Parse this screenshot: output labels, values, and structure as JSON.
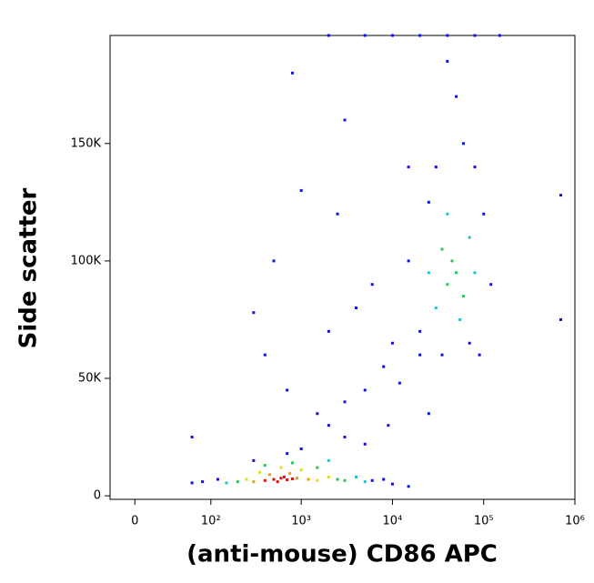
{
  "chart_data": {
    "type": "scatter",
    "x_label": "(anti-mouse) CD86 APC",
    "y_label": "Side scatter",
    "x_scale": "biexponential",
    "xlim": [
      -20,
      1000000
    ],
    "ylim": [
      -1500,
      196000
    ],
    "xticks": [
      0,
      {
        "value": 100,
        "label": "10²"
      },
      {
        "value": 1000,
        "label": "10³"
      },
      {
        "value": 10000,
        "label": "10⁴"
      },
      {
        "value": 100000,
        "label": "10⁵"
      },
      {
        "value": 1000000,
        "label": "10⁶"
      }
    ],
    "yticks": [
      0,
      {
        "value": 50000,
        "label": "50K"
      },
      {
        "value": 100000,
        "label": "100K"
      },
      {
        "value": 150000,
        "label": "150K"
      }
    ],
    "series": [
      {
        "color": "#1010e0",
        "x": [
          80,
          60,
          120,
          6000,
          8000,
          10000,
          15000,
          300,
          1000,
          3000,
          5000,
          2000,
          700,
          1500,
          3000,
          5000,
          8000,
          10000,
          12000,
          20000,
          700,
          2000,
          4000,
          500,
          1000,
          2500,
          6000,
          15000,
          800,
          3000,
          400,
          9000,
          25000,
          700000,
          700000,
          60,
          300,
          20000,
          90000,
          15000,
          30000,
          60000,
          100000,
          50000,
          40000,
          70000,
          120000,
          25000,
          80000,
          35000,
          2000,
          5000,
          10000,
          20000,
          40000,
          80000,
          150000
        ],
        "y": [
          6000,
          5500,
          7000,
          6500,
          7000,
          5000,
          4000,
          15000,
          20000,
          25000,
          22000,
          30000,
          18000,
          35000,
          40000,
          45000,
          55000,
          65000,
          48000,
          60000,
          45000,
          70000,
          80000,
          100000,
          130000,
          120000,
          90000,
          140000,
          180000,
          160000,
          60000,
          30000,
          35000,
          128000,
          75000,
          25000,
          78000,
          70000,
          60000,
          100000,
          140000,
          150000,
          120000,
          170000,
          185000,
          65000,
          90000,
          125000,
          140000,
          60000,
          196000,
          196000,
          196000,
          196000,
          196000,
          196000,
          196000
        ]
      },
      {
        "color": "#20c0d0",
        "x": [
          150,
          4000,
          5000,
          2000,
          30000,
          70000,
          55000,
          40000,
          25000,
          80000
        ],
        "y": [
          5500,
          8000,
          6000,
          15000,
          80000,
          110000,
          75000,
          120000,
          95000,
          95000
        ]
      },
      {
        "color": "#30c060",
        "x": [
          200,
          2500,
          3000,
          1500,
          800,
          400,
          40000,
          50000,
          45000,
          60000,
          35000
        ],
        "y": [
          6000,
          7000,
          6500,
          12000,
          14000,
          13000,
          90000,
          95000,
          100000,
          85000,
          105000
        ]
      },
      {
        "color": "#e0e020",
        "x": [
          250,
          1500,
          2000,
          350,
          1000,
          600
        ],
        "y": [
          7000,
          6500,
          8000,
          10000,
          11000,
          12000
        ]
      },
      {
        "color": "#f0a000",
        "x": [
          300,
          900,
          1200,
          450,
          750
        ],
        "y": [
          6000,
          7500,
          7000,
          9000,
          9500
        ]
      },
      {
        "color": "#e01010",
        "x": [
          400,
          500,
          600,
          700,
          800,
          550,
          650
        ],
        "y": [
          6500,
          7000,
          7500,
          6800,
          7200,
          6000,
          8000
        ]
      }
    ]
  }
}
